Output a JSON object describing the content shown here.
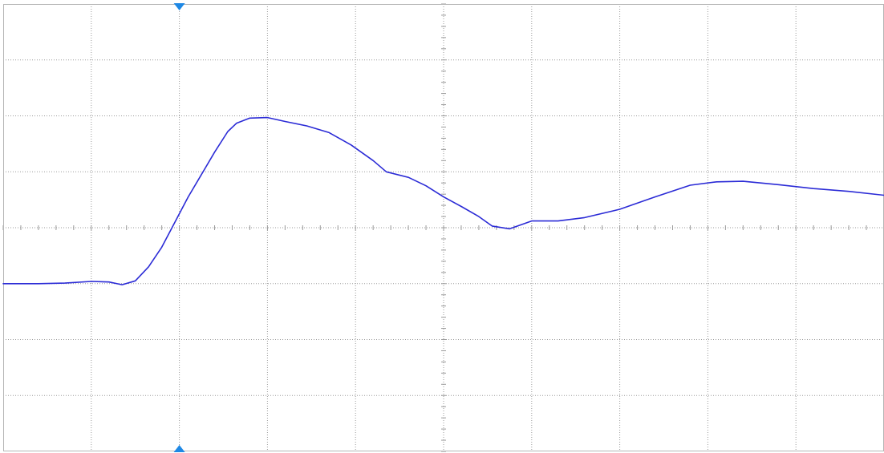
{
  "chart_data": {
    "type": "line",
    "title": "",
    "xlabel": "",
    "ylabel": "",
    "xlim": [
      -5,
      5
    ],
    "ylim": [
      -4,
      4
    ],
    "grid": true,
    "grid_divisions": {
      "x": 10,
      "y": 8
    },
    "trigger_marker_x": -3,
    "series": [
      {
        "color": "#2b2bd6",
        "points": [
          [
            -5.0,
            -1.0
          ],
          [
            -4.6,
            -1.0
          ],
          [
            -4.3,
            -0.99
          ],
          [
            -4.0,
            -0.96
          ],
          [
            -3.8,
            -0.97
          ],
          [
            -3.65,
            -1.02
          ],
          [
            -3.5,
            -0.95
          ],
          [
            -3.35,
            -0.7
          ],
          [
            -3.2,
            -0.35
          ],
          [
            -3.05,
            0.1
          ],
          [
            -2.9,
            0.55
          ],
          [
            -2.75,
            0.95
          ],
          [
            -2.6,
            1.35
          ],
          [
            -2.45,
            1.72
          ],
          [
            -2.35,
            1.87
          ],
          [
            -2.2,
            1.96
          ],
          [
            -2.0,
            1.97
          ],
          [
            -1.8,
            1.9
          ],
          [
            -1.55,
            1.82
          ],
          [
            -1.3,
            1.7
          ],
          [
            -1.05,
            1.48
          ],
          [
            -0.8,
            1.2
          ],
          [
            -0.65,
            1.0
          ],
          [
            -0.4,
            0.9
          ],
          [
            -0.2,
            0.75
          ],
          [
            0.0,
            0.55
          ],
          [
            0.2,
            0.38
          ],
          [
            0.4,
            0.2
          ],
          [
            0.55,
            0.03
          ],
          [
            0.75,
            -0.02
          ],
          [
            1.0,
            0.12
          ],
          [
            1.3,
            0.12
          ],
          [
            1.6,
            0.18
          ],
          [
            2.0,
            0.33
          ],
          [
            2.4,
            0.55
          ],
          [
            2.8,
            0.76
          ],
          [
            3.1,
            0.82
          ],
          [
            3.4,
            0.83
          ],
          [
            3.8,
            0.77
          ],
          [
            4.2,
            0.7
          ],
          [
            4.6,
            0.65
          ],
          [
            5.0,
            0.58
          ]
        ]
      }
    ],
    "colors": {
      "grid": "#9a9a9a",
      "border": "#b5b5b5",
      "trigger": "#1e88e5",
      "background": "#ffffff"
    }
  }
}
